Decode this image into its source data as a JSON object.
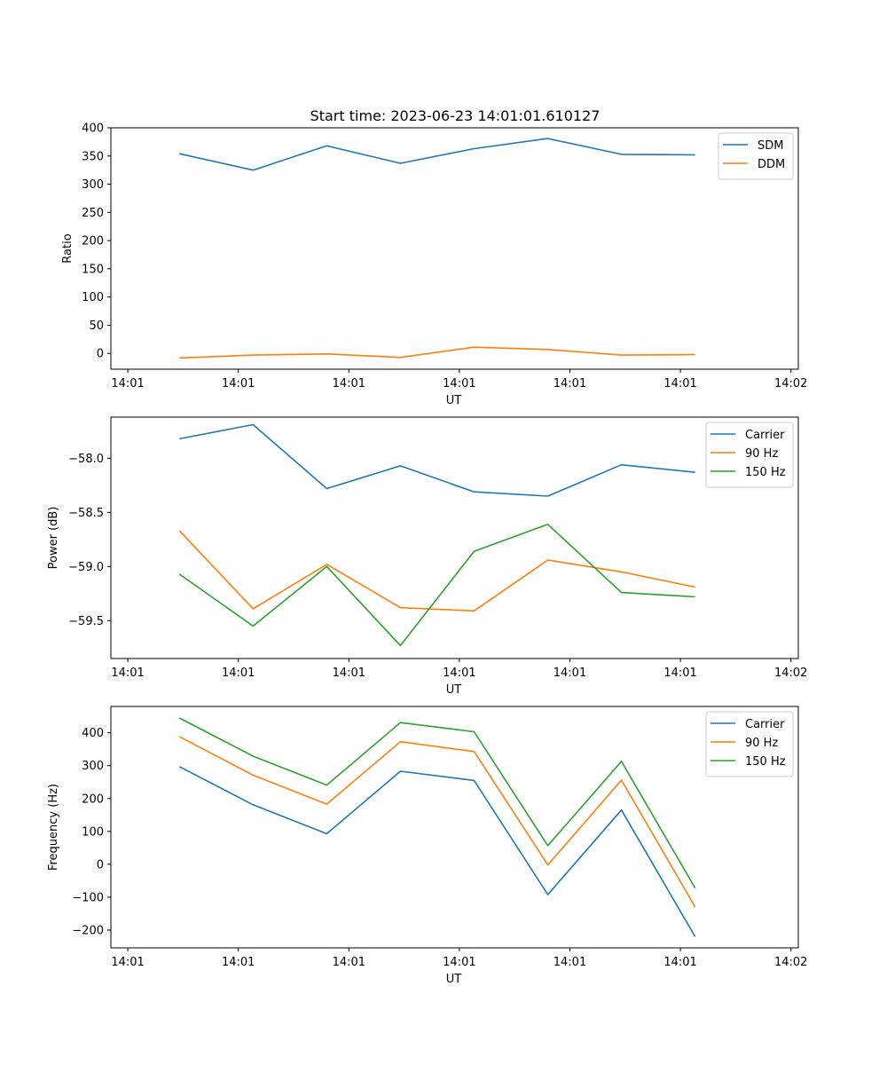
{
  "figure": {
    "title": "Start time: 2023-06-23 14:01:01.610127"
  },
  "chart_data": [
    {
      "type": "line",
      "xlabel": "UT",
      "ylabel": "Ratio",
      "x_tick_labels": [
        "14:01",
        "14:01",
        "14:01",
        "14:01",
        "14:01",
        "14:01",
        "14:02"
      ],
      "xlim": [
        -0.23,
        9.1
      ],
      "x": [
        0.7,
        1.7,
        2.7,
        3.7,
        4.7,
        5.7,
        6.7,
        7.7
      ],
      "ylim": [
        -28,
        400
      ],
      "yticks": [
        0,
        50,
        100,
        150,
        200,
        250,
        300,
        350,
        400
      ],
      "legend": "top-right",
      "series": [
        {
          "name": "SDM",
          "color": "#1f77b4",
          "values": [
            354,
            325,
            368,
            337,
            363,
            381,
            353,
            352
          ]
        },
        {
          "name": "DDM",
          "color": "#ff7f0e",
          "values": [
            -8,
            -3,
            -1,
            -7,
            11,
            7,
            -3,
            -2
          ]
        }
      ]
    },
    {
      "type": "line",
      "xlabel": "UT",
      "ylabel": "Power (dB)",
      "x_tick_labels": [
        "14:01",
        "14:01",
        "14:01",
        "14:01",
        "14:01",
        "14:01",
        "14:02"
      ],
      "xlim": [
        -0.23,
        9.1
      ],
      "x": [
        0.7,
        1.7,
        2.7,
        3.7,
        4.7,
        5.7,
        6.7,
        7.7
      ],
      "ylim": [
        -59.85,
        -57.62
      ],
      "yticks": [
        -58.0,
        -58.5,
        -59.0,
        -59.5
      ],
      "ytick_labels": [
        "−58.0",
        "−58.5",
        "−59.0",
        "−59.5"
      ],
      "legend": "top-right",
      "series": [
        {
          "name": "Carrier",
          "color": "#1f77b4",
          "values": [
            -57.82,
            -57.69,
            -58.28,
            -58.07,
            -58.31,
            -58.35,
            -58.06,
            -58.13
          ]
        },
        {
          "name": "90 Hz",
          "color": "#ff7f0e",
          "values": [
            -58.67,
            -59.39,
            -58.98,
            -59.38,
            -59.41,
            -58.94,
            -59.05,
            -59.19
          ]
        },
        {
          "name": "150 Hz",
          "color": "#2ca02c",
          "values": [
            -59.07,
            -59.55,
            -59.0,
            -59.73,
            -58.86,
            -58.61,
            -59.24,
            -59.28
          ]
        }
      ]
    },
    {
      "type": "line",
      "xlabel": "UT",
      "ylabel": "Frequency (Hz)",
      "x_tick_labels": [
        "14:01",
        "14:01",
        "14:01",
        "14:01",
        "14:01",
        "14:01",
        "14:02"
      ],
      "xlim": [
        -0.23,
        9.1
      ],
      "x": [
        0.7,
        1.7,
        2.7,
        3.7,
        4.7,
        5.7,
        6.7,
        7.7
      ],
      "ylim": [
        -254,
        480
      ],
      "yticks": [
        -200,
        -100,
        0,
        100,
        200,
        300,
        400
      ],
      "ytick_labels": [
        "−200",
        "−100",
        "0",
        "100",
        "200",
        "300",
        "400"
      ],
      "legend": "top-right",
      "series": [
        {
          "name": "Carrier",
          "color": "#1f77b4",
          "values": [
            297,
            181,
            93,
            283,
            255,
            -92,
            165,
            -220
          ]
        },
        {
          "name": "90 Hz",
          "color": "#ff7f0e",
          "values": [
            388,
            271,
            183,
            373,
            343,
            -2,
            256,
            -130
          ]
        },
        {
          "name": "150 Hz",
          "color": "#2ca02c",
          "values": [
            445,
            329,
            241,
            431,
            403,
            57,
            313,
            -72
          ]
        }
      ]
    }
  ]
}
